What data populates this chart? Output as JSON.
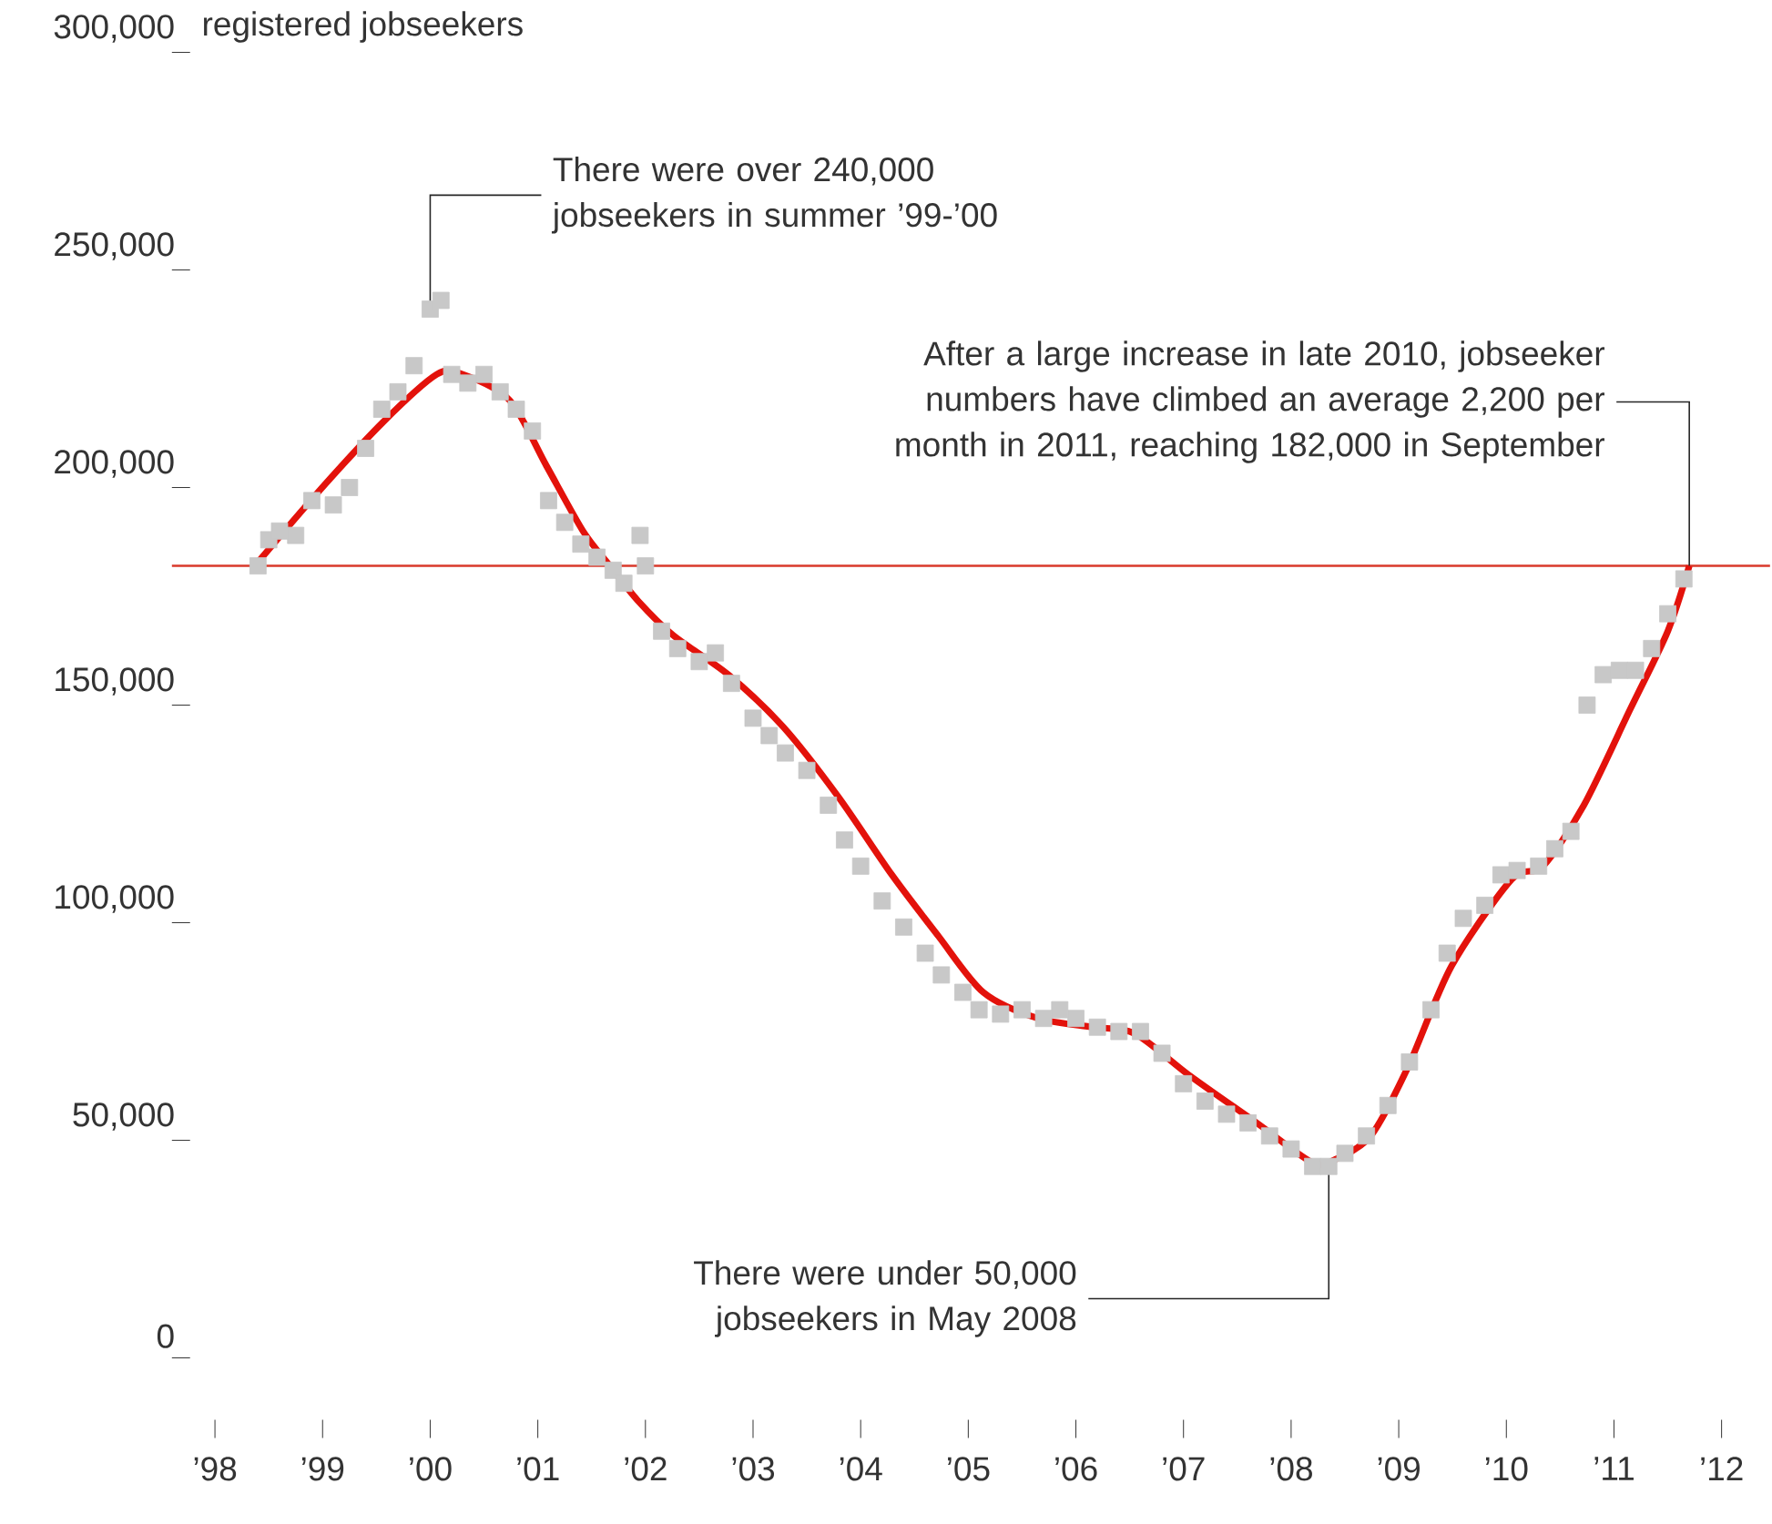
{
  "chart_data": {
    "type": "line",
    "ylabel": "registered jobseekers",
    "xlim": [
      1997.6,
      2012.45
    ],
    "ylim": [
      0,
      300000
    ],
    "xticks": [
      {
        "value": 1998,
        "label": "’98"
      },
      {
        "value": 1999,
        "label": "’99"
      },
      {
        "value": 2000,
        "label": "’00"
      },
      {
        "value": 2001,
        "label": "’01"
      },
      {
        "value": 2002,
        "label": "’02"
      },
      {
        "value": 2003,
        "label": "’03"
      },
      {
        "value": 2004,
        "label": "’04"
      },
      {
        "value": 2005,
        "label": "’05"
      },
      {
        "value": 2006,
        "label": "’06"
      },
      {
        "value": 2007,
        "label": "’07"
      },
      {
        "value": 2008,
        "label": "’08"
      },
      {
        "value": 2009,
        "label": "’09"
      },
      {
        "value": 2010,
        "label": "’10"
      },
      {
        "value": 2011,
        "label": "’11"
      },
      {
        "value": 2012,
        "label": "’12"
      }
    ],
    "yticks": [
      0,
      {
        "value": 50000,
        "label": "50,000"
      },
      {
        "value": 100000,
        "label": "100,000"
      },
      {
        "value": 150000,
        "label": "150,000"
      },
      {
        "value": 200000,
        "label": "200,000"
      },
      {
        "value": 250000,
        "label": "250,000"
      },
      {
        "value": 300000,
        "label": "300,000"
      }
    ],
    "series": [
      {
        "type": "scatter",
        "marker": "square",
        "color": "#c8c8c8",
        "x": [
          1998.4,
          1998.5,
          1998.6,
          1998.75,
          1998.9,
          1999.1,
          1999.25,
          1999.4,
          1999.55,
          1999.7,
          1999.85,
          2000.0,
          2000.1,
          2000.2,
          2000.35,
          2000.5,
          2000.65,
          2000.8,
          2000.95,
          2001.1,
          2001.25,
          2001.4,
          2001.55,
          2001.7,
          2001.8,
          2001.95,
          2002.0,
          2002.15,
          2002.3,
          2002.5,
          2002.65,
          2002.8,
          2003.0,
          2003.15,
          2003.3,
          2003.5,
          2003.7,
          2003.85,
          2004.0,
          2004.2,
          2004.4,
          2004.6,
          2004.75,
          2004.95,
          2005.1,
          2005.3,
          2005.5,
          2005.7,
          2005.85,
          2006.0,
          2006.2,
          2006.4,
          2006.6,
          2006.8,
          2007.0,
          2007.2,
          2007.4,
          2007.6,
          2007.8,
          2008.0,
          2008.2,
          2008.35,
          2008.5,
          2008.7,
          2008.9,
          2009.1,
          2009.3,
          2009.45,
          2009.6,
          2009.8,
          2009.95,
          2010.1,
          2010.3,
          2010.45,
          2010.6,
          2010.75,
          2010.9,
          2011.05,
          2011.2,
          2011.35,
          2011.5,
          2011.65
        ],
        "values": [
          182000,
          188000,
          190000,
          189000,
          197000,
          196000,
          200000,
          209000,
          218000,
          222000,
          228000,
          241000,
          243000,
          226000,
          224000,
          226000,
          222000,
          218000,
          213000,
          197000,
          192000,
          187000,
          184000,
          181000,
          178000,
          189000,
          182000,
          167000,
          163000,
          160000,
          162000,
          155000,
          147000,
          143000,
          139000,
          135000,
          127000,
          119000,
          113000,
          105000,
          99000,
          93000,
          88000,
          84000,
          80000,
          79000,
          80000,
          78000,
          80000,
          78000,
          76000,
          75000,
          75000,
          70000,
          63000,
          59000,
          56000,
          54000,
          51000,
          48000,
          44000,
          44000,
          47000,
          51000,
          58000,
          68000,
          80000,
          93000,
          101000,
          104000,
          111000,
          112000,
          113000,
          117000,
          121000,
          150000,
          157000,
          158000,
          158000,
          163000,
          171000,
          179000
        ]
      },
      {
        "type": "line",
        "marker": "none",
        "color": "#e3120b",
        "x": [
          1998.37,
          1998.96,
          1999.56,
          2000.06,
          2000.3,
          2000.74,
          2001.08,
          2001.42,
          2001.67,
          2001.93,
          2002.26,
          2002.77,
          2003.28,
          2003.79,
          2004.29,
          2004.72,
          2005.14,
          2005.65,
          2006.16,
          2006.55,
          2007.05,
          2007.68,
          2008.19,
          2008.41,
          2008.74,
          2009.08,
          2009.49,
          2010.05,
          2010.34,
          2010.72,
          2011.15,
          2011.5,
          2011.7
        ],
        "values": [
          182000,
          199000,
          215000,
          226000,
          226000,
          220000,
          205000,
          190000,
          182000,
          174000,
          166000,
          157000,
          145000,
          129000,
          111000,
          97000,
          84000,
          78000,
          76000,
          74500,
          65000,
          54000,
          45000,
          45600,
          51000,
          66500,
          90000,
          110000,
          113000,
          127000,
          149000,
          167000,
          182000
        ]
      }
    ],
    "ref_lines": [
      {
        "axis": "y",
        "value": 182000,
        "color": "#d9392b"
      }
    ],
    "annotations": [
      {
        "text": "There were over 240,000 jobseekers in summer ’99-’00",
        "x": 2000.0,
        "y": 240000
      },
      {
        "text": "After a large increase in late 2010, jobseeker numbers have climbed an average 2,200 per month in 2011, reaching 182,000 in September",
        "x": 2011.7,
        "y": 182000
      },
      {
        "text": "There were under 50,000 jobseekers in May 2008",
        "x": 2008.35,
        "y": 45000
      }
    ]
  }
}
